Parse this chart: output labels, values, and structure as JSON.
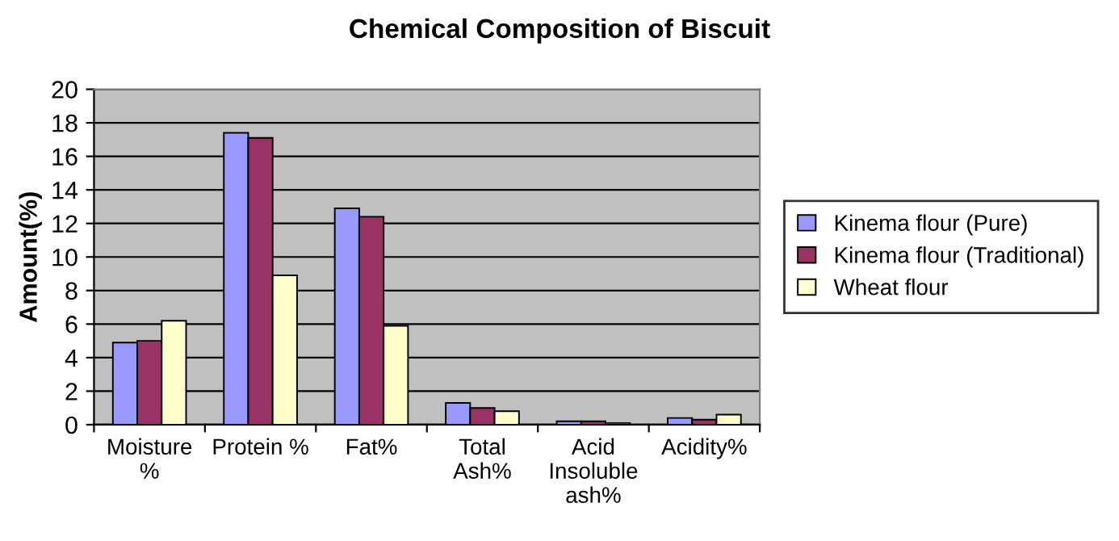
{
  "chart_data": {
    "type": "bar",
    "title": "Chemical Composition of Biscuit",
    "ylabel": "Amount(%)",
    "categories": [
      "Moisture\n%",
      "Protein %",
      "Fat%",
      "Total\nAsh%",
      "Acid\nInsoluble\nash%",
      "Acidity%"
    ],
    "series": [
      {
        "name": "Kinema flour (Pure)",
        "color": "#9999ff",
        "values": [
          4.9,
          17.4,
          12.9,
          1.3,
          0.2,
          0.4
        ]
      },
      {
        "name": "Kinema flour (Traditional)",
        "color": "#993366",
        "values": [
          5.0,
          17.1,
          12.4,
          1.0,
          0.2,
          0.3
        ]
      },
      {
        "name": "Wheat flour",
        "color": "#ffffcc",
        "values": [
          6.2,
          8.9,
          5.9,
          0.8,
          0.1,
          0.6
        ]
      }
    ],
    "ylim": [
      0,
      20
    ],
    "yticks": [
      0,
      2,
      4,
      6,
      8,
      10,
      12,
      14,
      16,
      18,
      20
    ],
    "grid": "y",
    "legend": "right"
  }
}
